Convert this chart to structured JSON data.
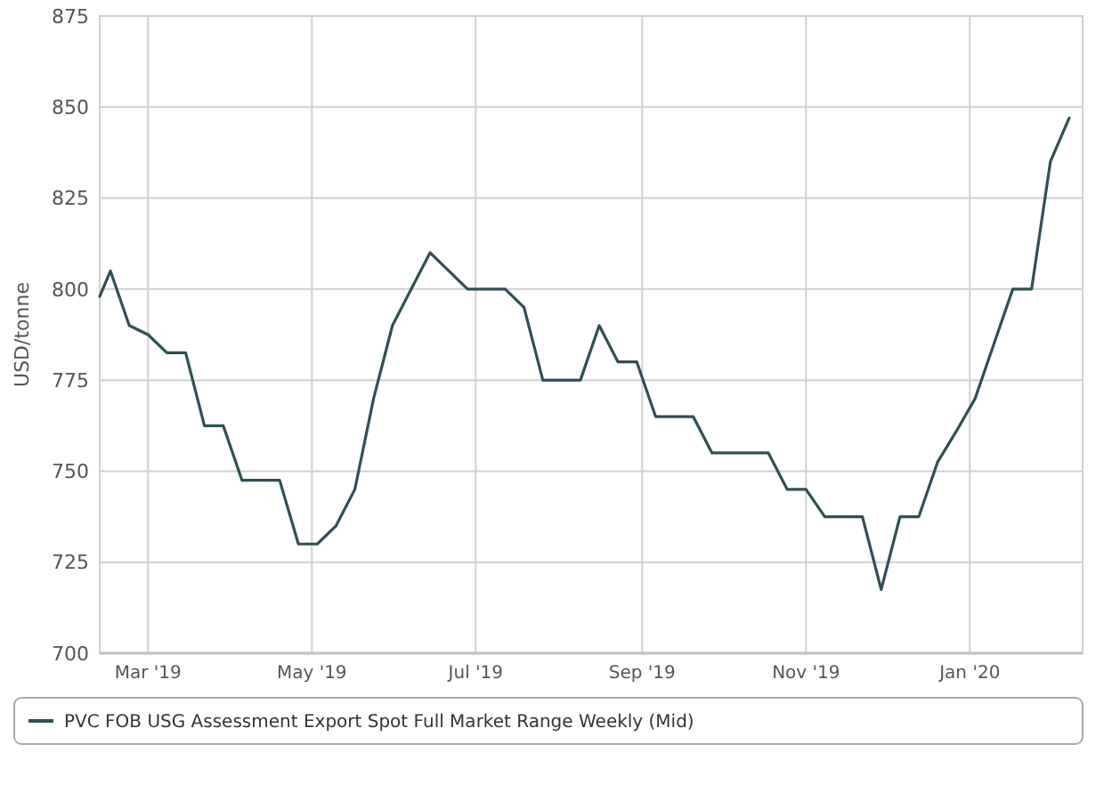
{
  "chart_data": {
    "type": "line",
    "ylabel": "USD/tonne",
    "x": [
      "2019-02-11",
      "2019-02-15",
      "2019-02-22",
      "2019-03-01",
      "2019-03-08",
      "2019-03-15",
      "2019-03-22",
      "2019-03-29",
      "2019-04-05",
      "2019-04-12",
      "2019-04-19",
      "2019-04-26",
      "2019-05-03",
      "2019-05-10",
      "2019-05-17",
      "2019-05-24",
      "2019-05-31",
      "2019-06-07",
      "2019-06-14",
      "2019-06-21",
      "2019-06-28",
      "2019-07-05",
      "2019-07-12",
      "2019-07-19",
      "2019-07-26",
      "2019-08-02",
      "2019-08-09",
      "2019-08-16",
      "2019-08-23",
      "2019-08-30",
      "2019-09-06",
      "2019-09-13",
      "2019-09-20",
      "2019-09-27",
      "2019-10-04",
      "2019-10-11",
      "2019-10-18",
      "2019-10-25",
      "2019-11-01",
      "2019-11-08",
      "2019-11-15",
      "2019-11-22",
      "2019-11-29",
      "2019-12-06",
      "2019-12-13",
      "2019-12-20",
      "2019-12-27",
      "2020-01-03",
      "2020-01-10",
      "2020-01-17",
      "2020-01-24",
      "2020-01-31",
      "2020-02-07"
    ],
    "series": [
      {
        "name": "PVC FOB USG Assessment Export Spot Full Market Range Weekly (Mid)",
        "color": "#2f4f55",
        "values": [
          798,
          805,
          790,
          787.5,
          782.5,
          782.5,
          762.5,
          762.5,
          747.5,
          747.5,
          747.5,
          730,
          730,
          735,
          745,
          770,
          790,
          800,
          810,
          805,
          800,
          800,
          800,
          795,
          775,
          775,
          775,
          790,
          780,
          780,
          765,
          765,
          765,
          755,
          755,
          755,
          755,
          745,
          745,
          737.5,
          737.5,
          737.5,
          717.5,
          737.5,
          737.5,
          752.5,
          761,
          770,
          785,
          800,
          800,
          835,
          847
        ]
      }
    ],
    "xlim": [
      "2019-02-11",
      "2020-02-12"
    ],
    "xticks": [
      {
        "value": "2019-03-01",
        "label": "Mar '19"
      },
      {
        "value": "2019-05-01",
        "label": "May '19"
      },
      {
        "value": "2019-07-01",
        "label": "Jul '19"
      },
      {
        "value": "2019-09-01",
        "label": "Sep '19"
      },
      {
        "value": "2019-11-01",
        "label": "Nov '19"
      },
      {
        "value": "2020-01-01",
        "label": "Jan '20"
      }
    ],
    "ylim": [
      700,
      875
    ],
    "yticks": [
      700,
      725,
      750,
      775,
      800,
      825,
      850,
      875
    ],
    "grid": true,
    "legend": "bottom",
    "marker": "none",
    "line_style": "solid"
  }
}
